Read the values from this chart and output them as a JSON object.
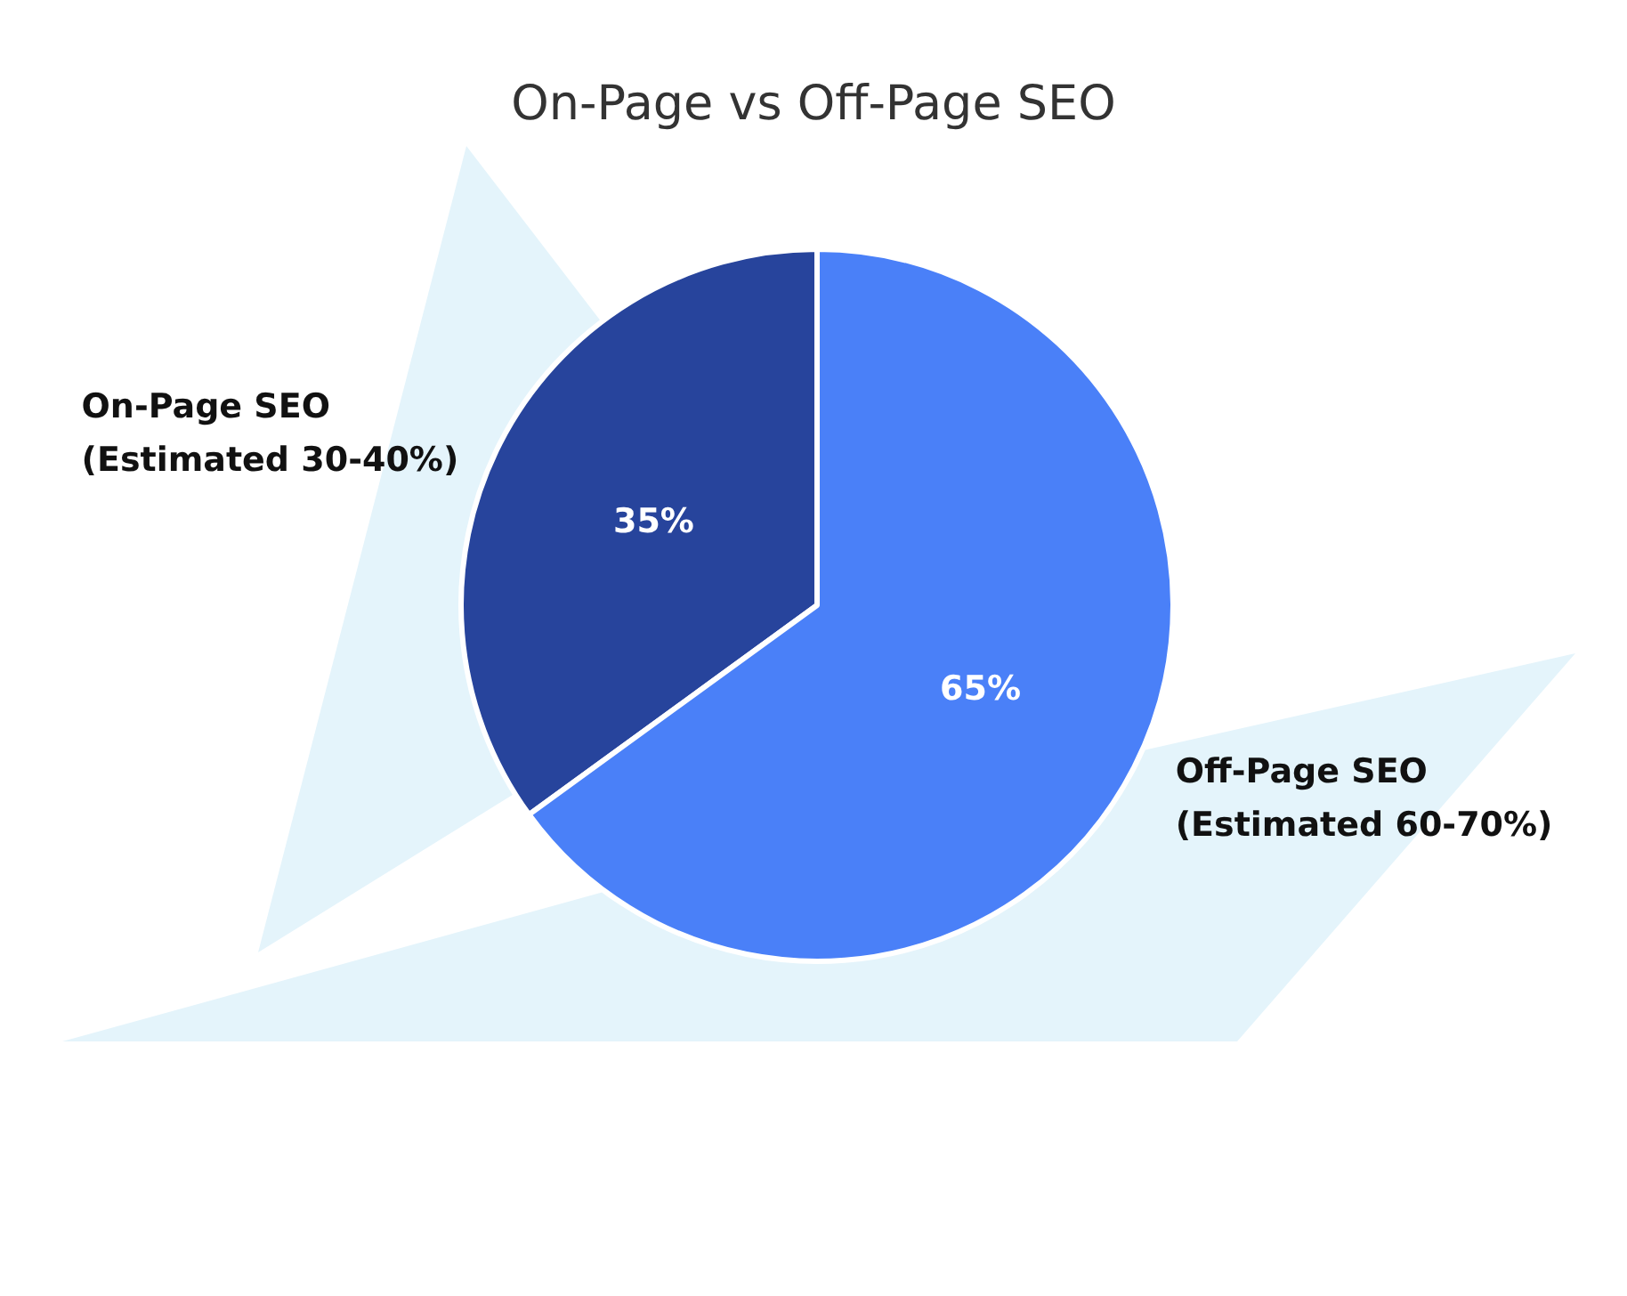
{
  "chart_data": {
    "type": "pie",
    "title": "On-Page vs Off-Page SEO",
    "categories": [
      "On-Page SEO\n(Estimated 30-40%)",
      "Off-Page SEO\n(Estimated 60-70%)"
    ],
    "values": [
      35,
      65
    ],
    "colors": [
      "#27449c",
      "#4a80f8"
    ],
    "value_labels": [
      "35%",
      "65%"
    ],
    "legend": false
  }
}
